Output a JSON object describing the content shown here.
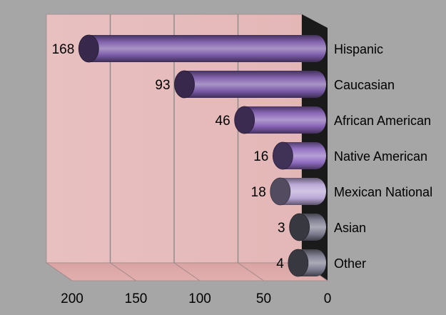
{
  "chart_data": {
    "type": "bar",
    "orientation": "horizontal",
    "style": "3d-cylinder",
    "axis_reversed": true,
    "categories": [
      "Hispanic",
      "Caucasian",
      "African American",
      "Native American",
      "Mexican National",
      "Asian",
      "Other"
    ],
    "values": [
      168,
      93,
      46,
      16,
      18,
      3,
      4
    ],
    "data_labels": [
      "168",
      "93",
      "46",
      "16",
      "18",
      "3",
      "4"
    ],
    "bar_colors": [
      "#7a5aa8",
      "#7a5aa8",
      "#8560b4",
      "#8f6cc0",
      "#b9a6d6",
      "#7c7c90",
      "#7c7c90"
    ],
    "xlim": [
      0,
      200
    ],
    "xticks": [
      200,
      150,
      100,
      50,
      0
    ],
    "xtick_labels": [
      "200",
      "150",
      "100",
      "50",
      "0"
    ],
    "grid": true,
    "title": "",
    "xlabel": "",
    "ylabel": "",
    "colors": {
      "background": "#a6a6a6",
      "wall": "#e7bcbc",
      "floor": "#dca7a7",
      "side_wall": "#1a1a1a",
      "gridline": "#8a8a8a"
    }
  }
}
